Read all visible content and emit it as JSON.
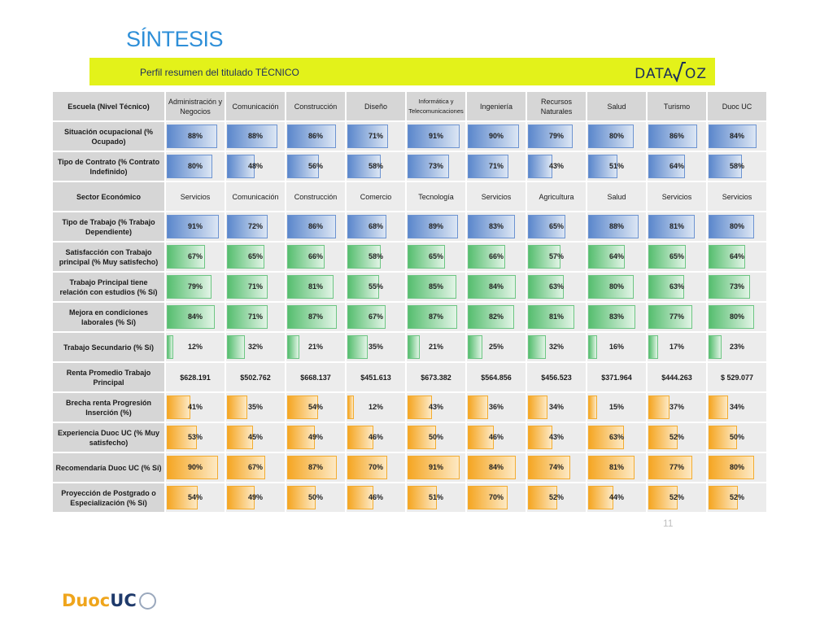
{
  "header": {
    "title": "SÍNTESIS",
    "banner_text": "Perfil resumen del titulado TÉCNICO",
    "logo_left": "DATA",
    "logo_right": "OZ"
  },
  "page_number": "11",
  "footer_logo": {
    "part1": "Duoc",
    "part2": "UC"
  },
  "table": {
    "corner_label": "Escuela (Nivel Técnico)",
    "columns": [
      "Administración y Negocios",
      "Comunicación",
      "Construcción",
      "Diseño",
      "Informática y Telecomunicaciones",
      "Ingeniería",
      "Recursos Naturales",
      "Salud",
      "Turismo",
      "Duoc UC"
    ],
    "sector_label": "Sector Económico",
    "sectors": [
      "Servicios",
      "Comunicación",
      "Construcción",
      "Comercio",
      "Tecnología",
      "Servicios",
      "Agricultura",
      "Salud",
      "Servicios",
      "Servicios"
    ],
    "renta_label": "Renta Promedio Trabajo Principal",
    "renta": [
      "$628.191",
      "$502.762",
      "$668.137",
      "$451.613",
      "$673.382",
      "$564.856",
      "$456.523",
      "$371.964",
      "$444.263",
      "$ 529.077"
    ],
    "rows_blue_top": [
      {
        "label": "Situación ocupacional (% Ocupado)",
        "values": [
          "88%",
          "88%",
          "86%",
          "71%",
          "91%",
          "90%",
          "79%",
          "80%",
          "86%",
          "84%"
        ],
        "fill": [
          88,
          88,
          86,
          71,
          91,
          90,
          79,
          80,
          86,
          84
        ]
      },
      {
        "label": "Tipo de Contrato (% Contrato Indefinido)",
        "values": [
          "80%",
          "48%",
          "56%",
          "58%",
          "73%",
          "71%",
          "43%",
          "51%",
          "64%",
          "58%"
        ],
        "fill": [
          80,
          48,
          56,
          58,
          73,
          71,
          43,
          51,
          64,
          58
        ]
      }
    ],
    "rows_blue_mid": [
      {
        "label": "Tipo de Trabajo (% Trabajo Dependiente)",
        "values": [
          "91%",
          "72%",
          "86%",
          "68%",
          "89%",
          "83%",
          "65%",
          "88%",
          "81%",
          "80%"
        ],
        "fill": [
          91,
          72,
          86,
          68,
          89,
          83,
          65,
          88,
          81,
          80
        ]
      }
    ],
    "rows_green": [
      {
        "label": "Satisfacción con Trabajo principal (% Muy satisfecho)",
        "values": [
          "67%",
          "65%",
          "66%",
          "58%",
          "65%",
          "66%",
          "57%",
          "64%",
          "65%",
          "64%"
        ],
        "fill": [
          67,
          65,
          66,
          58,
          65,
          66,
          57,
          64,
          65,
          64
        ]
      },
      {
        "label": "Trabajo Principal tiene relación con estudios (% Sí)",
        "values": [
          "79%",
          "71%",
          "81%",
          "55%",
          "85%",
          "84%",
          "63%",
          "80%",
          "63%",
          "73%"
        ],
        "fill": [
          79,
          71,
          81,
          55,
          85,
          84,
          63,
          80,
          63,
          73
        ]
      },
      {
        "label": "Mejora en condiciones laborales (% Sí)",
        "values": [
          "84%",
          "71%",
          "87%",
          "67%",
          "87%",
          "82%",
          "81%",
          "83%",
          "77%",
          "80%"
        ],
        "fill": [
          84,
          71,
          87,
          67,
          87,
          82,
          81,
          83,
          77,
          80
        ]
      },
      {
        "label": "Trabajo Secundario (% Sí)",
        "values": [
          "12%",
          "32%",
          "21%",
          "35%",
          "21%",
          "25%",
          "32%",
          "16%",
          "17%",
          "23%"
        ],
        "fill": [
          12,
          32,
          21,
          35,
          21,
          25,
          32,
          16,
          17,
          23
        ]
      }
    ],
    "rows_orange": [
      {
        "label": "Brecha renta Progresión Inserción (%)",
        "values": [
          "41%",
          "35%",
          "54%",
          "12%",
          "43%",
          "36%",
          "34%",
          "15%",
          "37%",
          "34%"
        ],
        "fill": [
          41,
          35,
          54,
          12,
          43,
          36,
          34,
          15,
          37,
          34
        ]
      },
      {
        "label": "Experiencia Duoc UC (% Muy satisfecho)",
        "values": [
          "53%",
          "45%",
          "49%",
          "46%",
          "50%",
          "46%",
          "43%",
          "63%",
          "52%",
          "50%"
        ],
        "fill": [
          53,
          45,
          49,
          46,
          50,
          46,
          43,
          63,
          52,
          50
        ]
      },
      {
        "label": "Recomendaría Duoc UC (% Sí)",
        "values": [
          "90%",
          "67%",
          "87%",
          "70%",
          "91%",
          "84%",
          "74%",
          "81%",
          "77%",
          "80%"
        ],
        "fill": [
          90,
          67,
          87,
          70,
          91,
          84,
          74,
          81,
          77,
          80
        ]
      },
      {
        "label": "Proyección de Postgrado o Especialización (% Sí)",
        "values": [
          "54%",
          "49%",
          "50%",
          "46%",
          "51%",
          "70%",
          "52%",
          "44%",
          "52%",
          "52%"
        ],
        "fill": [
          54,
          49,
          50,
          46,
          51,
          70,
          52,
          44,
          52,
          52
        ]
      }
    ]
  },
  "colors": {
    "title": "#2e8fd8",
    "banner": "#e3f21a",
    "blue_bar": "#5b87cc",
    "green_bar": "#56be6f",
    "orange_bar": "#f5a623"
  }
}
